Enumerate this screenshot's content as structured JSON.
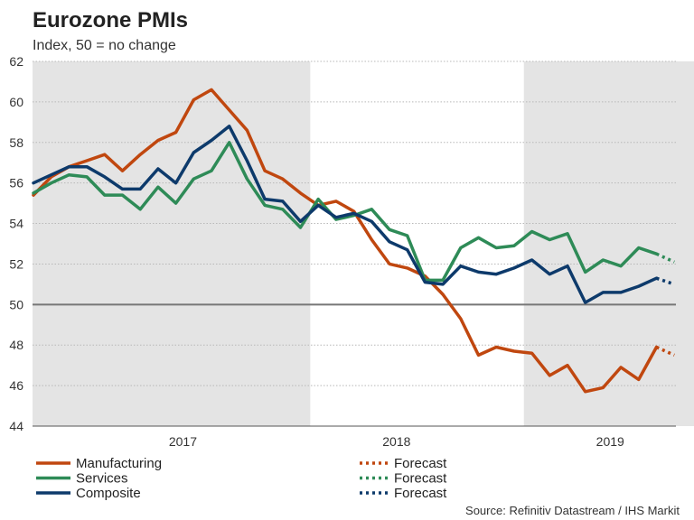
{
  "chart_data": {
    "type": "line",
    "title": "Eurozone PMIs",
    "subtitle": "Index, 50 = no change",
    "source": "Source: Refinitiv Datastream / IHS Markit",
    "ylim": [
      44,
      62
    ],
    "yticks": [
      "44",
      "46",
      "48",
      "50",
      "52",
      "54",
      "56",
      "58",
      "60",
      "62"
    ],
    "reference_line": 50,
    "year_labels": [
      "2017",
      "2018",
      "2019"
    ],
    "x_start": "2016-09",
    "shaded_periods": [
      {
        "label": "2017",
        "start_index": 0,
        "end_index": 16
      },
      {
        "label": "2019",
        "start_index": 28,
        "end_index": 40
      }
    ],
    "colors": {
      "Manufacturing": "#c0470f",
      "Services": "#2e8b57",
      "Composite": "#0d3a6b",
      "shade": "#e4e4e4",
      "grid": "#b8b8b8",
      "ref": "#777777"
    },
    "series": [
      {
        "name": "Manufacturing",
        "values": [
          55.4,
          56.3,
          56.8,
          57.1,
          57.4,
          56.6,
          57.4,
          58.1,
          58.5,
          60.1,
          60.6,
          59.6,
          58.6,
          56.6,
          56.2,
          55.5,
          54.9,
          55.1,
          54.6,
          53.2,
          52.0,
          51.8,
          51.4,
          50.5,
          49.3,
          47.5,
          47.9,
          47.7,
          47.6,
          46.5,
          47.0,
          45.7,
          45.9,
          46.9,
          46.3,
          47.9
        ],
        "forecast": [
          47.9,
          47.5
        ]
      },
      {
        "name": "Services",
        "values": [
          55.5,
          56.0,
          56.4,
          56.3,
          55.4,
          55.4,
          54.7,
          55.8,
          55.0,
          56.2,
          56.6,
          58.0,
          56.2,
          54.9,
          54.7,
          53.8,
          55.2,
          54.2,
          54.4,
          54.7,
          53.7,
          53.4,
          51.2,
          51.2,
          52.8,
          53.3,
          52.8,
          52.9,
          53.6,
          53.2,
          53.5,
          51.6,
          52.2,
          51.9,
          52.8,
          52.5
        ],
        "forecast": [
          52.5,
          52.1
        ]
      },
      {
        "name": "Composite",
        "values": [
          56.0,
          56.4,
          56.8,
          56.8,
          56.3,
          55.7,
          55.7,
          56.7,
          56.0,
          57.5,
          58.1,
          58.8,
          57.1,
          55.2,
          55.1,
          54.1,
          54.9,
          54.3,
          54.5,
          54.1,
          53.1,
          52.7,
          51.1,
          51.0,
          51.9,
          51.6,
          51.5,
          51.8,
          52.2,
          51.5,
          51.9,
          50.1,
          50.6,
          50.6,
          50.9,
          51.3
        ],
        "forecast": [
          51.3,
          51.0
        ]
      }
    ],
    "legend": {
      "items": [
        {
          "label": "Manufacturing",
          "forecast_label": "Forecast"
        },
        {
          "label": "Services",
          "forecast_label": "Forecast"
        },
        {
          "label": "Composite",
          "forecast_label": "Forecast"
        }
      ]
    }
  }
}
